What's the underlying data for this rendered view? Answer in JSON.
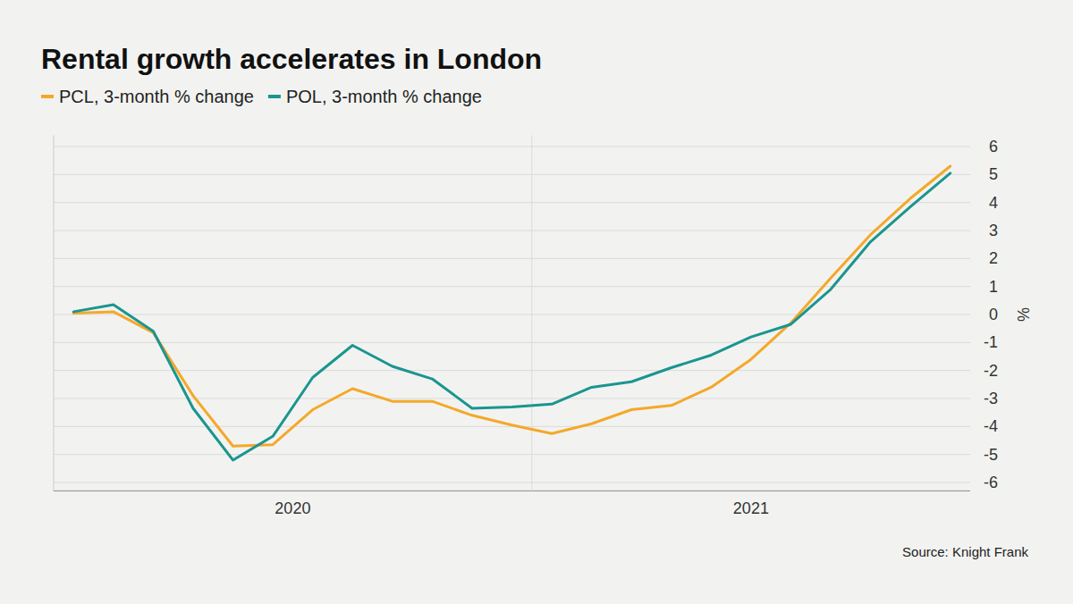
{
  "chart_data": {
    "type": "line",
    "title": "Rental growth accelerates in London",
    "categories": [
      "2020",
      null,
      null,
      null,
      null,
      null,
      null,
      null,
      null,
      null,
      null,
      null,
      "2021",
      null,
      null,
      null,
      null,
      null,
      null,
      null,
      null,
      null,
      null
    ],
    "series": [
      {
        "name": "PCL, 3-month % change",
        "color": "#f4a82a",
        "values": [
          0.05,
          0.1,
          -0.65,
          -2.9,
          -4.7,
          -4.65,
          -3.4,
          -2.65,
          -3.1,
          -3.1,
          -3.6,
          -3.95,
          -4.25,
          -3.9,
          -3.4,
          -3.25,
          -2.6,
          -1.6,
          -0.3,
          1.3,
          2.85,
          4.15,
          5.3
        ]
      },
      {
        "name": "POL, 3-month % change",
        "color": "#1b958f",
        "values": [
          0.1,
          0.35,
          -0.6,
          -3.35,
          -5.2,
          -4.35,
          -2.25,
          -1.1,
          -1.85,
          -2.3,
          -3.35,
          -3.3,
          -3.2,
          -2.6,
          -2.4,
          -1.9,
          -1.45,
          -0.8,
          -0.35,
          0.9,
          2.6,
          3.85,
          5.05
        ]
      }
    ],
    "ylim": [
      -6.3,
      6.4
    ],
    "yticks": [
      -6,
      -5,
      -4,
      -3,
      -2,
      -1,
      0,
      1,
      2,
      3,
      4,
      5,
      6
    ],
    "y_label": "%",
    "source": "Source: Knight Frank",
    "grid": true,
    "legend": "top-left"
  }
}
